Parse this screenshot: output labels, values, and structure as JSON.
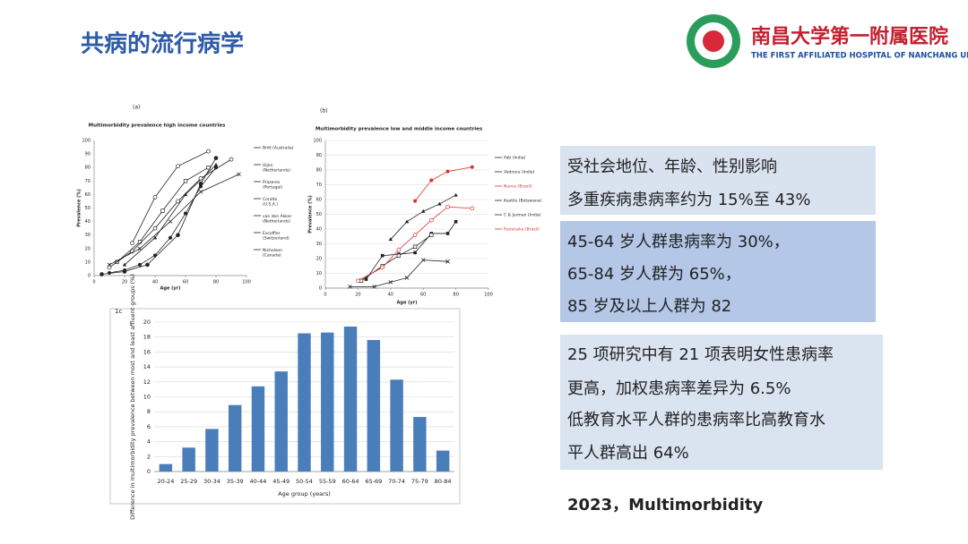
{
  "header": {
    "title": "共病的流行病学",
    "logo_cn": "南昌大学第一附属医院",
    "logo_en": "THE FIRST AFFILIATED HOSPITAL OF NANCHANG UNIVERSITY"
  },
  "panels": [
    {
      "lines": [
        "受社会地位、年龄、性别影响",
        "多重疾病患病率约为 15%至 43%"
      ]
    },
    {
      "lines": [
        "45-64 岁人群患病率为 30%，",
        "65-84 岁人群为 65%，",
        "85 岁及以上人群为 82"
      ]
    },
    {
      "lines": [
        "25 项研究中有 21 项表明女性患病率",
        "更高，加权患病率差异为 6.5%",
        "低教育水平人群的患病率比高教育水",
        "平人群高出 64%"
      ]
    }
  ],
  "footer": "2023，Multimorbidity",
  "chart_data": [
    {
      "type": "line",
      "panel": "(a)",
      "title": "Multimorbidity prevalence high income countries",
      "x_label": "Age (yr)",
      "y_label": "Prevalence (%)",
      "xlim": [
        0,
        100
      ],
      "xticks": [
        0,
        20,
        40,
        60,
        80,
        100
      ],
      "ylim": [
        0,
        100
      ],
      "yticks": [
        0,
        10,
        20,
        30,
        40,
        50,
        60,
        70,
        80,
        90,
        100
      ],
      "grid": false,
      "series": [
        {
          "name": "Britt (Australia)",
          "color": "#222222",
          "marker": "dot",
          "x": [
            10,
            20,
            30,
            40,
            50,
            60,
            70,
            80
          ],
          "values": [
            2,
            4,
            8,
            15,
            28,
            46,
            66,
            80
          ]
        },
        {
          "name": "Uijen (Netherlands)",
          "color": "#222222",
          "marker": "circle",
          "x": [
            5,
            20,
            35,
            55,
            70,
            80
          ],
          "values": [
            1,
            3,
            8,
            30,
            68,
            87
          ]
        },
        {
          "name": "Prazeres (Portugal)",
          "color": "#222222",
          "marker": "triangle",
          "x": [
            20,
            40,
            60,
            80
          ],
          "values": [
            8,
            28,
            60,
            82
          ]
        },
        {
          "name": "Coralto (U.S.A.)",
          "color": "#222222",
          "marker": "square",
          "x": [
            15,
            30,
            45,
            60,
            75
          ],
          "values": [
            10,
            25,
            48,
            70,
            80
          ]
        },
        {
          "name": "van den Akker (Netherlands)",
          "color": "#222222",
          "marker": "open",
          "x": [
            25,
            40,
            55,
            75
          ],
          "values": [
            24,
            58,
            81,
            92
          ]
        },
        {
          "name": "Excoffier (Switzerland)",
          "color": "#222222",
          "marker": "open",
          "x": [
            10,
            25,
            40,
            55,
            70,
            90
          ],
          "values": [
            6,
            18,
            35,
            55,
            72,
            86
          ]
        },
        {
          "name": "Nicholson (Canada)",
          "color": "#222222",
          "marker": "cross",
          "x": [
            10,
            30,
            50,
            70,
            95
          ],
          "values": [
            8,
            20,
            40,
            62,
            75
          ]
        }
      ]
    },
    {
      "type": "line",
      "panel": "(b)",
      "title": "Multimorbidity prevalence low and middle income countries",
      "x_label": "Age (yr)",
      "y_label": "Prevalence (%)",
      "xlim": [
        0,
        100
      ],
      "xticks": [
        0,
        20,
        40,
        60,
        80,
        100
      ],
      "ylim": [
        0,
        100
      ],
      "yticks": [
        0,
        10,
        20,
        30,
        40,
        50,
        60,
        70,
        80,
        90,
        100
      ],
      "grid": true,
      "series": [
        {
          "name": "Pati (India)",
          "color": "#222222",
          "marker": "square-fill",
          "x": [
            25,
            35,
            45,
            55,
            65,
            75,
            80
          ],
          "values": [
            6,
            22,
            23,
            24,
            37,
            37,
            45
          ]
        },
        {
          "name": "Vadrevu (India)",
          "color": "#222222",
          "marker": "triangle",
          "x": [
            40,
            50,
            60,
            70,
            80
          ],
          "values": [
            33,
            45,
            52,
            57,
            63
          ]
        },
        {
          "name": "Nunes (Brazil)",
          "color": "#e03030",
          "marker": "dot",
          "x": [
            55,
            65,
            75,
            90
          ],
          "values": [
            59,
            73,
            79,
            82
          ]
        },
        {
          "name": "Keetile (Botswana)",
          "color": "#222222",
          "marker": "cross",
          "x": [
            15,
            30,
            40,
            50,
            60,
            75
          ],
          "values": [
            1,
            1,
            4,
            7,
            19,
            18
          ]
        },
        {
          "name": "C & Jerman (India)",
          "color": "#222222",
          "marker": "square",
          "x": [
            22,
            35,
            45,
            55,
            65
          ],
          "values": [
            5,
            15,
            22,
            28,
            36
          ]
        },
        {
          "name": "Rzewuska (Brazil)",
          "color": "#e03030",
          "marker": "open",
          "x": [
            20,
            35,
            45,
            55,
            65,
            75,
            90
          ],
          "values": [
            5,
            14,
            26,
            36,
            46,
            55,
            54
          ]
        }
      ]
    },
    {
      "type": "bar",
      "panel": "1c",
      "y_label": "Difference in multimorbidity prevalence between most and least affluent groups (%)",
      "x_label": "Age group (years)",
      "color": "#4a7ebb",
      "categories": [
        "20-24",
        "25-29",
        "30-34",
        "35-39",
        "40-44",
        "45-49",
        "50-54",
        "55-59",
        "60-64",
        "65-69",
        "70-74",
        "75-79",
        "80-84"
      ],
      "values": [
        1.0,
        3.2,
        5.7,
        8.9,
        11.4,
        13.4,
        18.5,
        18.6,
        19.4,
        17.6,
        12.3,
        7.3,
        2.8
      ],
      "ylim": [
        0,
        20
      ],
      "yticks": [
        0,
        2,
        4,
        6,
        8,
        10,
        12,
        14,
        16,
        18,
        20
      ],
      "grid": true
    }
  ]
}
